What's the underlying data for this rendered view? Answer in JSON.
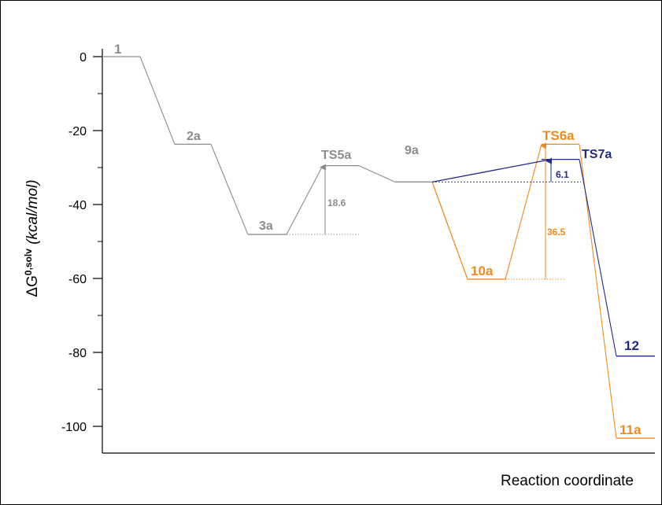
{
  "chart_data": {
    "type": "line",
    "title": "",
    "xlabel": "Reaction coordinate",
    "ylabel": {
      "prefix": "ΔG",
      "superscript": "0,solv",
      "units": " (kcal/mol)"
    },
    "ylim": [
      -107,
      2
    ],
    "yticks": [
      0,
      -20,
      -40,
      -60,
      -80,
      -100
    ],
    "ytick_labels": [
      "0",
      "-20",
      "-40",
      "-60",
      "-80",
      "-100"
    ],
    "grid": false,
    "colors": {
      "gray": "#8c8c8c",
      "orange": "#f08a1c",
      "navy": "#1f2a8a"
    },
    "states": [
      {
        "id": "1",
        "label": "1",
        "energy": 0,
        "color": "gray"
      },
      {
        "id": "2a",
        "label": "2a",
        "energy": -23.7,
        "color": "gray"
      },
      {
        "id": "3a",
        "label": "3a",
        "energy": -48.1,
        "color": "gray"
      },
      {
        "id": "TS5a",
        "label": "TS5a",
        "energy": -29.5,
        "color": "gray"
      },
      {
        "id": "9a",
        "label": "9a",
        "energy": -33.9,
        "color": "gray"
      },
      {
        "id": "10a",
        "label": "10a",
        "energy": -60.2,
        "color": "orange"
      },
      {
        "id": "TS6a",
        "label": "TS6a",
        "energy": -23.7,
        "color": "orange"
      },
      {
        "id": "TS7a",
        "label": "TS7a",
        "energy": -27.8,
        "color": "navy"
      },
      {
        "id": "12",
        "label": "12",
        "energy": -81.0,
        "color": "navy"
      },
      {
        "id": "11a",
        "label": "11a",
        "energy": -103.2,
        "color": "orange"
      }
    ],
    "barriers": [
      {
        "label": "18.6",
        "value": 18.6,
        "from": "3a",
        "to": "TS5a",
        "color": "gray"
      },
      {
        "label": "36.5",
        "value": 36.5,
        "from": "10a",
        "to": "TS6a",
        "color": "orange"
      },
      {
        "label": "6.1",
        "value": 6.1,
        "from": "9a",
        "to": "TS7a",
        "color": "navy"
      }
    ]
  }
}
